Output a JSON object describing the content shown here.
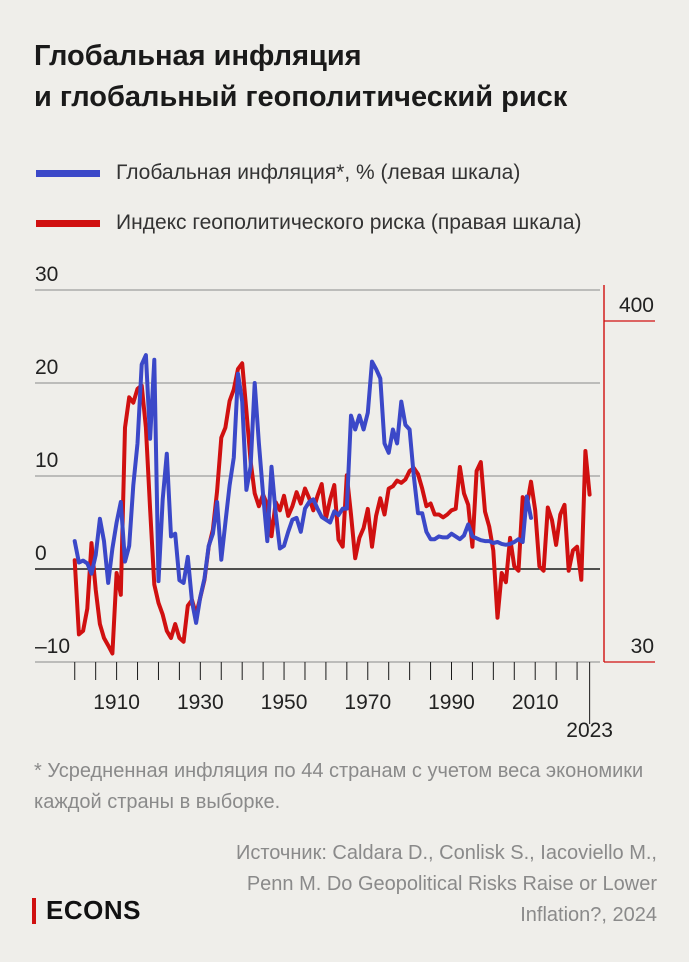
{
  "title_line1": "Глобальная инфляция",
  "title_line2": "и глобальный геополитический риск",
  "legend": [
    {
      "label": "Глобальная инфляция*, % (левая шкала)",
      "color": "#3b48c8"
    },
    {
      "label": "Индекс геополитического риска (правая шкала)",
      "color": "#d01010"
    }
  ],
  "footnote": "* Усредненная инфляция по 44 странам с учетом веса экономики каждой страны в выборке.",
  "source": "Источник: Caldara D., Conlisk S., Iacoviello M., Penn M. Do Geopolitical Risks Raise or Lower Inflation?, 2024",
  "brand": "ECONS",
  "chart_data": {
    "type": "line",
    "title": "Глобальная инфляция и глобальный геополитический риск",
    "x_tick_labels": [
      "1910",
      "1930",
      "1950",
      "1970",
      "1990",
      "2010",
      "2023"
    ],
    "x_ticks": [
      1900,
      1905,
      1910,
      1915,
      1920,
      1925,
      1930,
      1935,
      1940,
      1945,
      1950,
      1955,
      1960,
      1965,
      1970,
      1975,
      1980,
      1985,
      1990,
      1995,
      2000,
      2005,
      2010,
      2015,
      2020,
      2023
    ],
    "xlim": [
      1896,
      2025
    ],
    "y_left": {
      "ticks": [
        30,
        20,
        10,
        0,
        -10
      ],
      "tick_labels": [
        "30",
        "20",
        "10",
        "0",
        "–10"
      ],
      "ylim": [
        -10,
        30
      ]
    },
    "y_right": {
      "scale": "log",
      "tick_labels": [
        "400",
        "30"
      ],
      "ylim": [
        30,
        400
      ]
    },
    "grid": "horizontal",
    "series": [
      {
        "name": "Глобальная инфляция*, % (левая шкала)",
        "color": "#3b48c8",
        "axis": "left",
        "points": [
          [
            1900,
            3.0
          ],
          [
            1901,
            0.7
          ],
          [
            1902,
            0.9
          ],
          [
            1903,
            0.6
          ],
          [
            1904,
            -0.5
          ],
          [
            1905,
            1.5
          ],
          [
            1906,
            5.4
          ],
          [
            1907,
            3.0
          ],
          [
            1908,
            -1.5
          ],
          [
            1909,
            2.2
          ],
          [
            1910,
            5.0
          ],
          [
            1911,
            7.2
          ],
          [
            1912,
            0.8
          ],
          [
            1913,
            2.5
          ],
          [
            1914,
            9.0
          ],
          [
            1915,
            13.5
          ],
          [
            1916,
            22.0
          ],
          [
            1917,
            23.0
          ],
          [
            1918,
            14.0
          ],
          [
            1919,
            22.5
          ],
          [
            1920,
            -1.3
          ],
          [
            1921,
            7.5
          ],
          [
            1922,
            12.4
          ],
          [
            1923,
            3.5
          ],
          [
            1924,
            3.8
          ],
          [
            1925,
            -1.2
          ],
          [
            1926,
            -1.5
          ],
          [
            1927,
            1.3
          ],
          [
            1928,
            -3.5
          ],
          [
            1929,
            -5.8
          ],
          [
            1930,
            -3.0
          ],
          [
            1931,
            -1.0
          ],
          [
            1932,
            2.5
          ],
          [
            1933,
            3.8
          ],
          [
            1934,
            7.2
          ],
          [
            1935,
            1.0
          ],
          [
            1936,
            5.0
          ],
          [
            1937,
            9.0
          ],
          [
            1938,
            12.0
          ],
          [
            1939,
            21.0
          ],
          [
            1940,
            18.0
          ],
          [
            1941,
            8.5
          ],
          [
            1942,
            11.0
          ],
          [
            1943,
            20.0
          ],
          [
            1944,
            13.5
          ],
          [
            1945,
            8.0
          ],
          [
            1946,
            3.0
          ],
          [
            1947,
            11.0
          ],
          [
            1948,
            6.0
          ],
          [
            1949,
            2.2
          ],
          [
            1950,
            2.5
          ],
          [
            1951,
            4.0
          ],
          [
            1952,
            5.3
          ],
          [
            1953,
            5.5
          ],
          [
            1954,
            4.0
          ],
          [
            1955,
            6.5
          ],
          [
            1956,
            7.2
          ],
          [
            1957,
            7.5
          ],
          [
            1958,
            6.5
          ],
          [
            1959,
            5.6
          ],
          [
            1960,
            5.3
          ],
          [
            1961,
            5.0
          ],
          [
            1962,
            6.2
          ],
          [
            1963,
            5.8
          ],
          [
            1964,
            6.5
          ],
          [
            1965,
            6.5
          ],
          [
            1966,
            16.5
          ],
          [
            1967,
            15.0
          ],
          [
            1968,
            16.5
          ],
          [
            1969,
            15.0
          ],
          [
            1970,
            16.8
          ],
          [
            1971,
            22.3
          ],
          [
            1972,
            21.5
          ],
          [
            1973,
            20.5
          ],
          [
            1974,
            13.5
          ],
          [
            1975,
            12.5
          ],
          [
            1976,
            15.0
          ],
          [
            1977,
            13.5
          ],
          [
            1978,
            18.0
          ],
          [
            1979,
            15.5
          ],
          [
            1980,
            15.0
          ],
          [
            1981,
            10.0
          ],
          [
            1982,
            6.0
          ],
          [
            1983,
            6.0
          ],
          [
            1984,
            4.0
          ],
          [
            1985,
            3.2
          ],
          [
            1986,
            3.2
          ],
          [
            1987,
            3.5
          ],
          [
            1988,
            3.4
          ],
          [
            1989,
            3.4
          ],
          [
            1990,
            3.8
          ],
          [
            1991,
            3.5
          ],
          [
            1992,
            3.2
          ],
          [
            1993,
            3.6
          ],
          [
            1994,
            4.8
          ],
          [
            1995,
            3.5
          ],
          [
            1996,
            3.3
          ],
          [
            1997,
            3.1
          ],
          [
            1998,
            3.0
          ],
          [
            1999,
            3.0
          ],
          [
            2000,
            2.8
          ],
          [
            2001,
            2.9
          ],
          [
            2002,
            2.7
          ],
          [
            2003,
            2.6
          ],
          [
            2004,
            2.7
          ],
          [
            2005,
            2.9
          ],
          [
            2006,
            3.2
          ],
          [
            2007,
            2.9
          ],
          [
            2008,
            7.8
          ],
          [
            2009,
            5.5
          ]
        ]
      },
      {
        "name": "Индекс геополитического риска (правая шкала)",
        "color": "#d01010",
        "axis": "right",
        "points": [
          [
            1900,
            65
          ],
          [
            1901,
            37
          ],
          [
            1902,
            38
          ],
          [
            1903,
            45
          ],
          [
            1904,
            74
          ],
          [
            1905,
            52
          ],
          [
            1906,
            40
          ],
          [
            1907,
            36
          ],
          [
            1908,
            34
          ],
          [
            1909,
            32
          ],
          [
            1910,
            59
          ],
          [
            1911,
            50
          ],
          [
            1912,
            178
          ],
          [
            1913,
            224
          ],
          [
            1914,
            215
          ],
          [
            1915,
            239
          ],
          [
            1916,
            245
          ],
          [
            1917,
            178
          ],
          [
            1918,
            96
          ],
          [
            1919,
            54
          ],
          [
            1920,
            47
          ],
          [
            1921,
            43
          ],
          [
            1922,
            38
          ],
          [
            1923,
            36
          ],
          [
            1924,
            40
          ],
          [
            1925,
            36
          ],
          [
            1926,
            35
          ],
          [
            1927,
            46
          ],
          [
            1928,
            48
          ],
          [
            1929,
            43
          ],
          [
            1930,
            49
          ],
          [
            1931,
            56
          ],
          [
            1932,
            72
          ],
          [
            1933,
            82
          ],
          [
            1934,
            110
          ],
          [
            1935,
            165
          ],
          [
            1936,
            178
          ],
          [
            1937,
            218
          ],
          [
            1938,
            238
          ],
          [
            1939,
            278
          ],
          [
            1940,
            290
          ],
          [
            1941,
            202
          ],
          [
            1942,
            138
          ],
          [
            1943,
            108
          ],
          [
            1944,
            98
          ],
          [
            1945,
            107
          ],
          [
            1946,
            99
          ],
          [
            1947,
            78
          ],
          [
            1948,
            101
          ],
          [
            1949,
            95
          ],
          [
            1950,
            106
          ],
          [
            1951,
            91
          ],
          [
            1952,
            98
          ],
          [
            1953,
            109
          ],
          [
            1954,
            100
          ],
          [
            1955,
            112
          ],
          [
            1956,
            104
          ],
          [
            1957,
            95
          ],
          [
            1958,
            106
          ],
          [
            1959,
            116
          ],
          [
            1960,
            89
          ],
          [
            1961,
            103
          ],
          [
            1962,
            115
          ],
          [
            1963,
            76
          ],
          [
            1964,
            72
          ],
          [
            1965,
            124
          ],
          [
            1966,
            92
          ],
          [
            1967,
            66
          ],
          [
            1968,
            77
          ],
          [
            1969,
            83
          ],
          [
            1970,
            96
          ],
          [
            1971,
            72
          ],
          [
            1972,
            91
          ],
          [
            1973,
            104
          ],
          [
            1974,
            92
          ],
          [
            1975,
            112
          ],
          [
            1976,
            114
          ],
          [
            1977,
            119
          ],
          [
            1978,
            117
          ],
          [
            1979,
            120
          ],
          [
            1980,
            128
          ],
          [
            1981,
            131
          ],
          [
            1982,
            125
          ],
          [
            1983,
            112
          ],
          [
            1984,
            98
          ],
          [
            1985,
            100
          ],
          [
            1986,
            92
          ],
          [
            1987,
            92
          ],
          [
            1988,
            90
          ],
          [
            1989,
            92
          ],
          [
            1990,
            95
          ],
          [
            1991,
            96
          ],
          [
            1992,
            132
          ],
          [
            1993,
            108
          ],
          [
            1994,
            99
          ],
          [
            1995,
            72
          ],
          [
            1996,
            128
          ],
          [
            1997,
            137
          ],
          [
            1998,
            94
          ],
          [
            1999,
            84
          ],
          [
            2000,
            70
          ],
          [
            2001,
            42
          ],
          [
            2002,
            59
          ],
          [
            2003,
            55
          ],
          [
            2004,
            77
          ],
          [
            2005,
            62
          ],
          [
            2006,
            60
          ],
          [
            2007,
            105
          ],
          [
            2008,
            98
          ],
          [
            2009,
            118
          ],
          [
            2010,
            95
          ],
          [
            2011,
            62
          ],
          [
            2012,
            60
          ],
          [
            2013,
            97
          ],
          [
            2014,
            88
          ],
          [
            2015,
            73
          ],
          [
            2016,
            92
          ],
          [
            2017,
            99
          ],
          [
            2018,
            60
          ],
          [
            2019,
            70
          ],
          [
            2020,
            72
          ],
          [
            2021,
            56
          ],
          [
            2022,
            149
          ],
          [
            2023,
            107
          ]
        ]
      }
    ]
  }
}
